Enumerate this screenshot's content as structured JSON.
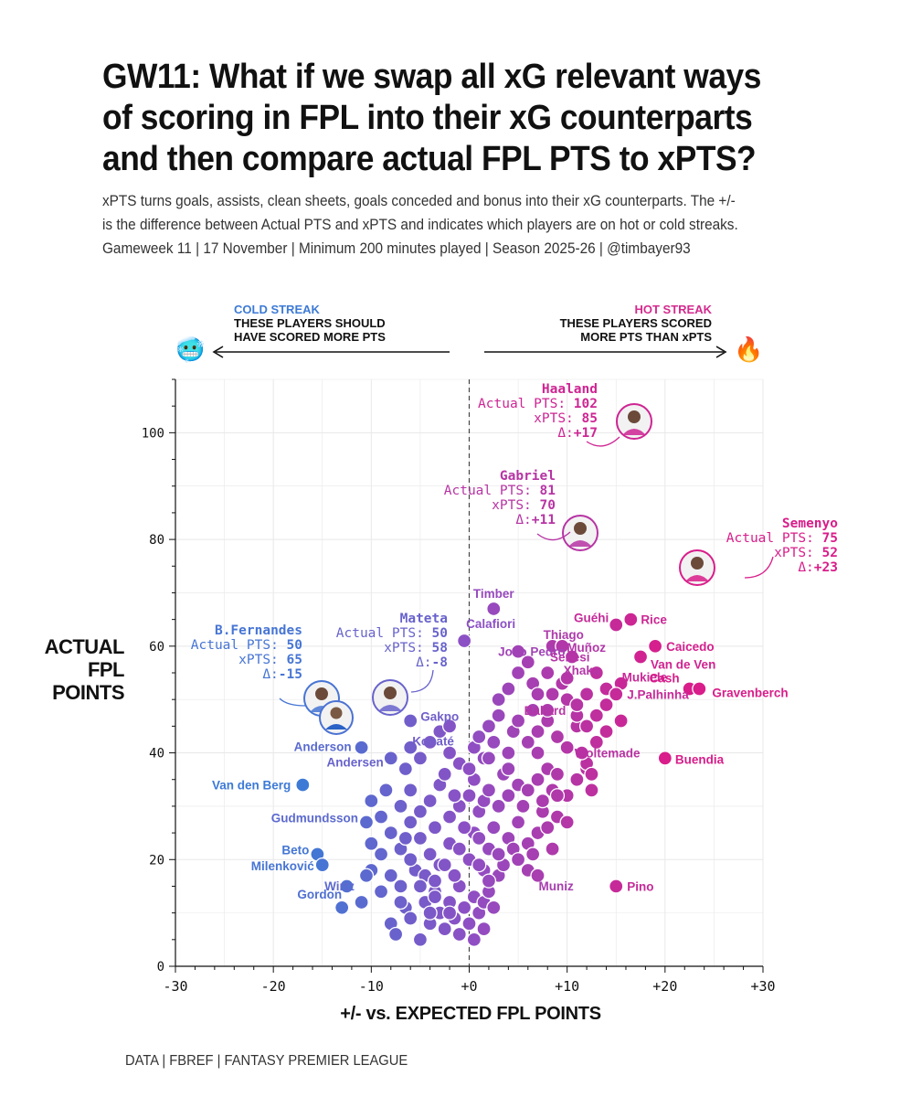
{
  "header": {
    "title": "GW11: What if we swap all xG relevant ways of scoring in FPL into their xG counterparts and then compare actual FPL PTS to xPTS?",
    "subtitle_line1": "xPTS turns goals, assists, clean sheets, goals conceded and bonus into their xG counterparts. The +/-",
    "subtitle_line2": "is the difference between Actual PTS and xPTS and indicates which players are on hot or cold streaks.",
    "subtitle_line3": "Gameweek 11 | 17 November | Minimum 200 minutes played | Season 2025-26 | @timbayer93"
  },
  "streaks": {
    "cold_tag": "COLD STREAK",
    "cold_line1": "THESE PLAYERS SHOULD",
    "cold_line2": "HAVE SCORED MORE PTS",
    "cold_emoji": "🥶",
    "hot_tag": "HOT STREAK",
    "hot_line1": "THESE PLAYERS SCORED",
    "hot_line2": "MORE PTS THAN xPTS",
    "hot_emoji": "🔥"
  },
  "axes": {
    "ylabel_1": "ACTUAL",
    "ylabel_2": "FPL",
    "ylabel_3": "POINTS",
    "xlabel": "+/- vs. EXPECTED FPL POINTS"
  },
  "caption": "DATA | FBREF | FANTASY PREMIER LEAGUE",
  "colors": {
    "cold": "#3d7ad6",
    "mid": "#8e4fc4",
    "hot": "#d91d8a",
    "grid": "#e8e8e8"
  },
  "chart_data": {
    "type": "scatter",
    "x_label": "+/- vs. EXPECTED FPL POINTS",
    "y_label": "ACTUAL FPL POINTS",
    "xlim": [
      -30,
      30
    ],
    "ylim": [
      0,
      110
    ],
    "x_ticks": [
      -30,
      -20,
      -10,
      0,
      10,
      20,
      30
    ],
    "x_tick_labels": [
      "-30",
      "-20",
      "-10",
      "+0",
      "+10",
      "+20",
      "+30"
    ],
    "y_ticks": [
      0,
      20,
      40,
      60,
      80,
      100
    ],
    "y_tick_labels": [
      "0",
      "20",
      "40",
      "60",
      "80",
      "100"
    ],
    "reference_line_x": 0,
    "highlighted": [
      {
        "name": "Haaland",
        "actual": 102,
        "xpts": 85,
        "delta": "+17",
        "x": 17,
        "y": 102,
        "label_actual": "Actual PTS:",
        "label_xpts": "xPTS:",
        "label_delta": "Δ:"
      },
      {
        "name": "Gabriel",
        "actual": 81,
        "xpts": 70,
        "delta": "+11",
        "x": 11,
        "y": 81,
        "label_actual": "Actual PTS:",
        "label_xpts": "xPTS:",
        "label_delta": "Δ:"
      },
      {
        "name": "Semenyo",
        "actual": 75,
        "xpts": 52,
        "delta": "+23",
        "x": 23,
        "y": 75,
        "label_actual": "Actual PTS:",
        "label_xpts": "xPTS:",
        "label_delta": "Δ:"
      },
      {
        "name": "Mateta",
        "actual": 50,
        "xpts": 58,
        "delta": "-8",
        "x": -8,
        "y": 50,
        "label_actual": "Actual PTS:",
        "label_xpts": "xPTS:",
        "label_delta": "Δ:"
      },
      {
        "name": "B.Fernandes",
        "actual": 50,
        "xpts": 65,
        "delta": "-15",
        "x": -15,
        "y": 50,
        "label_actual": "Actual PTS:",
        "label_xpts": "xPTS:",
        "label_delta": "Δ:"
      }
    ],
    "labeled_points": [
      {
        "name": "Timber",
        "x": 2.5,
        "y": 67
      },
      {
        "name": "Guéhi",
        "x": 15,
        "y": 64
      },
      {
        "name": "Rice",
        "x": 16.5,
        "y": 65
      },
      {
        "name": "Calafiori",
        "x": -0.5,
        "y": 61
      },
      {
        "name": "Thiago",
        "x": 8.5,
        "y": 60
      },
      {
        "name": "Muñoz",
        "x": 9.5,
        "y": 60
      },
      {
        "name": "Caicedo",
        "x": 19,
        "y": 60
      },
      {
        "name": "João Pedro",
        "x": 5,
        "y": 59
      },
      {
        "name": "Senesi",
        "x": 10.5,
        "y": 58
      },
      {
        "name": "Van de Ven",
        "x": 17.5,
        "y": 58
      },
      {
        "name": "Xhaka",
        "x": 10,
        "y": 54
      },
      {
        "name": "Mukiele",
        "x": 15.5,
        "y": 53
      },
      {
        "name": "Cash",
        "x": 22.5,
        "y": 52
      },
      {
        "name": "Gravenberch",
        "x": 23.5,
        "y": 52
      },
      {
        "name": "J.Palhinha",
        "x": 15,
        "y": 51
      },
      {
        "name": "Ballard",
        "x": 11,
        "y": 49
      },
      {
        "name": "Gakpo",
        "x": -6,
        "y": 46
      },
      {
        "name": "Anderson",
        "x": -11,
        "y": 41
      },
      {
        "name": "Konaté",
        "x": -6,
        "y": 41
      },
      {
        "name": "Woltemade",
        "x": 11.5,
        "y": 40
      },
      {
        "name": "Andersen",
        "x": -8,
        "y": 39
      },
      {
        "name": "Buendia",
        "x": 20,
        "y": 39
      },
      {
        "name": "Van den Berg",
        "x": -17,
        "y": 34
      },
      {
        "name": "Gudmundsson",
        "x": -10.5,
        "y": 27
      },
      {
        "name": "Beto",
        "x": -15.5,
        "y": 21
      },
      {
        "name": "Milenković",
        "x": -15,
        "y": 19
      },
      {
        "name": "Wirtz",
        "x": -10.5,
        "y": 17
      },
      {
        "name": "Muniz",
        "x": 7,
        "y": 17
      },
      {
        "name": "Pino",
        "x": 15,
        "y": 15
      },
      {
        "name": "Gordon",
        "x": -13,
        "y": 11
      }
    ],
    "points": [
      [
        -12.5,
        15
      ],
      [
        -11,
        12
      ],
      [
        -10,
        18
      ],
      [
        -9,
        14
      ],
      [
        -8,
        8
      ],
      [
        -7.5,
        6
      ],
      [
        -6.5,
        11
      ],
      [
        -6,
        9
      ],
      [
        -5,
        5
      ],
      [
        -4.5,
        12
      ],
      [
        -4,
        8
      ],
      [
        -3.5,
        14
      ],
      [
        -3,
        10
      ],
      [
        -2.5,
        7
      ],
      [
        -2,
        12
      ],
      [
        -1.5,
        9
      ],
      [
        -1,
        15
      ],
      [
        -0.5,
        11
      ],
      [
        0,
        8
      ],
      [
        0.5,
        13
      ],
      [
        1,
        10
      ],
      [
        1.5,
        12
      ],
      [
        2,
        14
      ],
      [
        2.5,
        11
      ],
      [
        3,
        17
      ],
      [
        3.5,
        19
      ],
      [
        -9,
        21
      ],
      [
        -8,
        25
      ],
      [
        -7,
        22
      ],
      [
        -6,
        27
      ],
      [
        -5,
        24
      ],
      [
        -4,
        21
      ],
      [
        -3.5,
        26
      ],
      [
        -3,
        19
      ],
      [
        -2,
        23
      ],
      [
        -1,
        22
      ],
      [
        0,
        20
      ],
      [
        0.5,
        25
      ],
      [
        1,
        24
      ],
      [
        1.5,
        18
      ],
      [
        2,
        22
      ],
      [
        2.5,
        26
      ],
      [
        3,
        21
      ],
      [
        4,
        24
      ],
      [
        4.5,
        22
      ],
      [
        5,
        27
      ],
      [
        6,
        23
      ],
      [
        6.5,
        21
      ],
      [
        7,
        25
      ],
      [
        7.5,
        29
      ],
      [
        8,
        26
      ],
      [
        9,
        28
      ],
      [
        10,
        27
      ],
      [
        -7,
        30
      ],
      [
        -6,
        33
      ],
      [
        -5,
        29
      ],
      [
        -4,
        31
      ],
      [
        -3,
        34
      ],
      [
        -2,
        28
      ],
      [
        -1,
        30
      ],
      [
        0,
        32
      ],
      [
        0.5,
        35
      ],
      [
        1,
        29
      ],
      [
        1.5,
        31
      ],
      [
        2,
        33
      ],
      [
        3,
        30
      ],
      [
        3.5,
        36
      ],
      [
        4,
        32
      ],
      [
        5,
        34
      ],
      [
        5.5,
        30
      ],
      [
        6,
        33
      ],
      [
        7,
        35
      ],
      [
        7.5,
        31
      ],
      [
        8,
        37
      ],
      [
        8.5,
        33
      ],
      [
        9,
        36
      ],
      [
        10,
        32
      ],
      [
        11,
        35
      ],
      [
        12,
        37
      ],
      [
        12.5,
        33
      ],
      [
        -6.5,
        37
      ],
      [
        -5,
        39
      ],
      [
        -4,
        42
      ],
      [
        -3,
        44
      ],
      [
        -2,
        40
      ],
      [
        -2,
        45
      ],
      [
        -1,
        38
      ],
      [
        0,
        37
      ],
      [
        0.5,
        41
      ],
      [
        1,
        43
      ],
      [
        1.5,
        39
      ],
      [
        2,
        45
      ],
      [
        2.5,
        42
      ],
      [
        3,
        47
      ],
      [
        4,
        40
      ],
      [
        4.5,
        44
      ],
      [
        5,
        46
      ],
      [
        6,
        42
      ],
      [
        6.5,
        48
      ],
      [
        7,
        44
      ],
      [
        8,
        46
      ],
      [
        9,
        43
      ],
      [
        10,
        41
      ],
      [
        11,
        45
      ],
      [
        12,
        38
      ],
      [
        12.5,
        36
      ],
      [
        13,
        47
      ],
      [
        14,
        44
      ],
      [
        3,
        50
      ],
      [
        4,
        52
      ],
      [
        5,
        55
      ],
      [
        6,
        57
      ],
      [
        6.5,
        53
      ],
      [
        7,
        51
      ],
      [
        8,
        55
      ],
      [
        8.5,
        51
      ],
      [
        9.5,
        53
      ],
      [
        12,
        51
      ],
      [
        13,
        55
      ],
      [
        14,
        52
      ],
      [
        -9,
        28
      ],
      [
        -10,
        23
      ],
      [
        -8,
        17
      ],
      [
        -7,
        15
      ],
      [
        -5.5,
        18
      ],
      [
        -4.5,
        17
      ],
      [
        -3.5,
        16
      ],
      [
        -2.5,
        19
      ],
      [
        -1.5,
        17
      ],
      [
        2,
        16
      ],
      [
        1,
        19
      ],
      [
        -0.5,
        26
      ],
      [
        -1.5,
        32
      ],
      [
        -2.5,
        36
      ],
      [
        4,
        37
      ],
      [
        2,
        39
      ],
      [
        -3.5,
        13
      ],
      [
        -5,
        15
      ],
      [
        -6,
        20
      ],
      [
        -7,
        12
      ],
      [
        1.5,
        7
      ],
      [
        0.5,
        5
      ],
      [
        -1,
        6
      ],
      [
        -2,
        10
      ],
      [
        -4,
        10
      ],
      [
        -6.5,
        24
      ],
      [
        -8.5,
        33
      ],
      [
        -10,
        31
      ],
      [
        5,
        20
      ],
      [
        6,
        18
      ],
      [
        8.5,
        22
      ],
      [
        9,
        32
      ],
      [
        7,
        40
      ],
      [
        8,
        48
      ],
      [
        10,
        50
      ],
      [
        11,
        47
      ],
      [
        13,
        42
      ],
      [
        12,
        45
      ],
      [
        15.5,
        46
      ],
      [
        14,
        49
      ]
    ]
  }
}
